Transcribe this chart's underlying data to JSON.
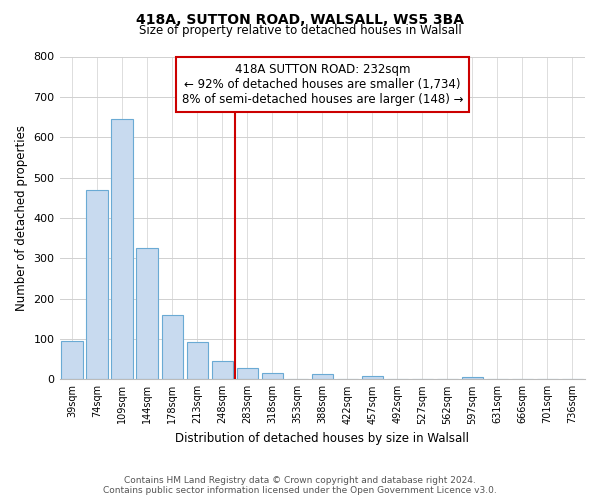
{
  "title": "418A, SUTTON ROAD, WALSALL, WS5 3BA",
  "subtitle": "Size of property relative to detached houses in Walsall",
  "xlabel": "Distribution of detached houses by size in Walsall",
  "ylabel": "Number of detached properties",
  "footer_line1": "Contains HM Land Registry data © Crown copyright and database right 2024.",
  "footer_line2": "Contains public sector information licensed under the Open Government Licence v3.0.",
  "bar_labels": [
    "39sqm",
    "74sqm",
    "109sqm",
    "144sqm",
    "178sqm",
    "213sqm",
    "248sqm",
    "283sqm",
    "318sqm",
    "353sqm",
    "388sqm",
    "422sqm",
    "457sqm",
    "492sqm",
    "527sqm",
    "562sqm",
    "597sqm",
    "631sqm",
    "666sqm",
    "701sqm",
    "736sqm"
  ],
  "bar_values": [
    95,
    470,
    645,
    325,
    160,
    93,
    45,
    28,
    15,
    0,
    13,
    0,
    7,
    0,
    0,
    0,
    5,
    0,
    0,
    0,
    0
  ],
  "bar_color": "#c8daef",
  "bar_edge_color": "#6aaad4",
  "vline_x": 6.5,
  "vline_color": "#cc0000",
  "annotation_title": "418A SUTTON ROAD: 232sqm",
  "annotation_line1": "← 92% of detached houses are smaller (1,734)",
  "annotation_line2": "8% of semi-detached houses are larger (148) →",
  "annotation_box_color": "#ffffff",
  "annotation_box_edge_color": "#cc0000",
  "ylim": [
    0,
    800
  ],
  "yticks": [
    0,
    100,
    200,
    300,
    400,
    500,
    600,
    700,
    800
  ],
  "background_color": "#ffffff",
  "grid_color": "#d0d0d0"
}
